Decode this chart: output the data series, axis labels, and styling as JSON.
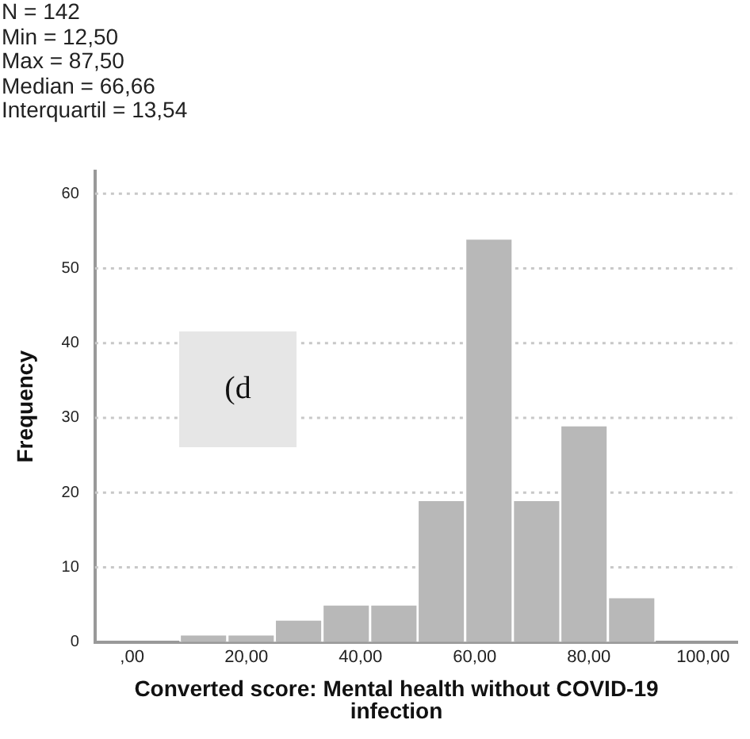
{
  "chart_data": {
    "type": "histogram",
    "annotations": [
      "N = 142",
      "Min = 12,50",
      "Max = 87,50",
      "Median = 66,66",
      "Interquartil = 13,54",
      "(d"
    ],
    "xlabel": "Converted score: Mental health without COVID-19 infection",
    "ylabel": "Frequency",
    "bins": [
      8.3,
      16.7,
      25,
      33.3,
      41.7,
      50,
      58.3,
      66.7,
      75,
      83.3,
      91.7
    ],
    "values": [
      1,
      1,
      3,
      5,
      5,
      19,
      54,
      19,
      29,
      6
    ],
    "color": "#b8b8b8",
    "xlim": [
      -6.5,
      106
    ],
    "xticks": [
      {
        "value": 0,
        "label": ",00"
      },
      {
        "value": 20,
        "label": "20,00"
      },
      {
        "value": 40,
        "label": "40,00"
      },
      {
        "value": 60,
        "label": "60,00"
      },
      {
        "value": 80,
        "label": "80,00"
      },
      {
        "value": 100,
        "label": "100,00"
      }
    ],
    "ylim": [
      0,
      63
    ],
    "yticks": [
      0,
      10,
      20,
      30,
      40,
      50,
      60
    ],
    "grid": "y"
  }
}
